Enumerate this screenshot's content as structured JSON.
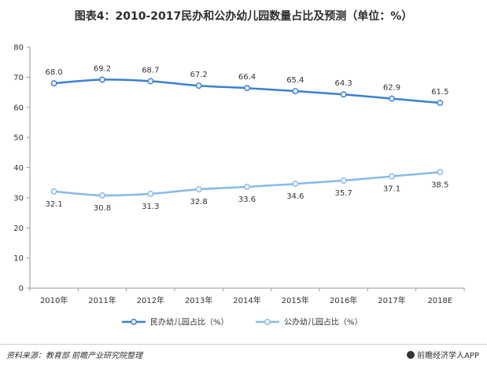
{
  "title": "图表4：2010-2017民办和公办幼儿园数量占比及预测（单位：%）",
  "chart_data": {
    "type": "line",
    "categories": [
      "2010年",
      "2011年",
      "2012年",
      "2013年",
      "2014年",
      "2015年",
      "2016年",
      "2017年",
      "2018E"
    ],
    "y_ticks": [
      "0",
      "10",
      "20",
      "30",
      "40",
      "50",
      "60",
      "70",
      "80"
    ],
    "ylim": [
      0,
      80
    ],
    "grid": false,
    "legend_position": "bottom",
    "series": [
      {
        "name": "民办幼儿园占比（%）",
        "values": [
          68.0,
          69.2,
          68.7,
          67.2,
          66.4,
          65.4,
          64.3,
          62.9,
          61.5
        ],
        "labels": [
          "68.0",
          "69.2",
          "68.7",
          "67.2",
          "66.4",
          "65.4",
          "64.3",
          "62.9",
          "61.5"
        ],
        "color": "#3b7fd6",
        "label_position": "above"
      },
      {
        "name": "公办幼儿园占比（%）",
        "values": [
          32.1,
          30.8,
          31.3,
          32.8,
          33.6,
          34.6,
          35.7,
          37.1,
          38.5
        ],
        "labels": [
          "32.1",
          "30.8",
          "31.3",
          "32.8",
          "33.6",
          "34.6",
          "35.7",
          "37.1",
          "38.5"
        ],
        "color": "#86b9ee",
        "label_position": "below"
      }
    ]
  },
  "footer": {
    "source": "资料来源：教育部  前瞻产业研究院整理",
    "brand": "前瞻经济学人APP",
    "brand_icon": "qianzhan-logo-icon"
  }
}
